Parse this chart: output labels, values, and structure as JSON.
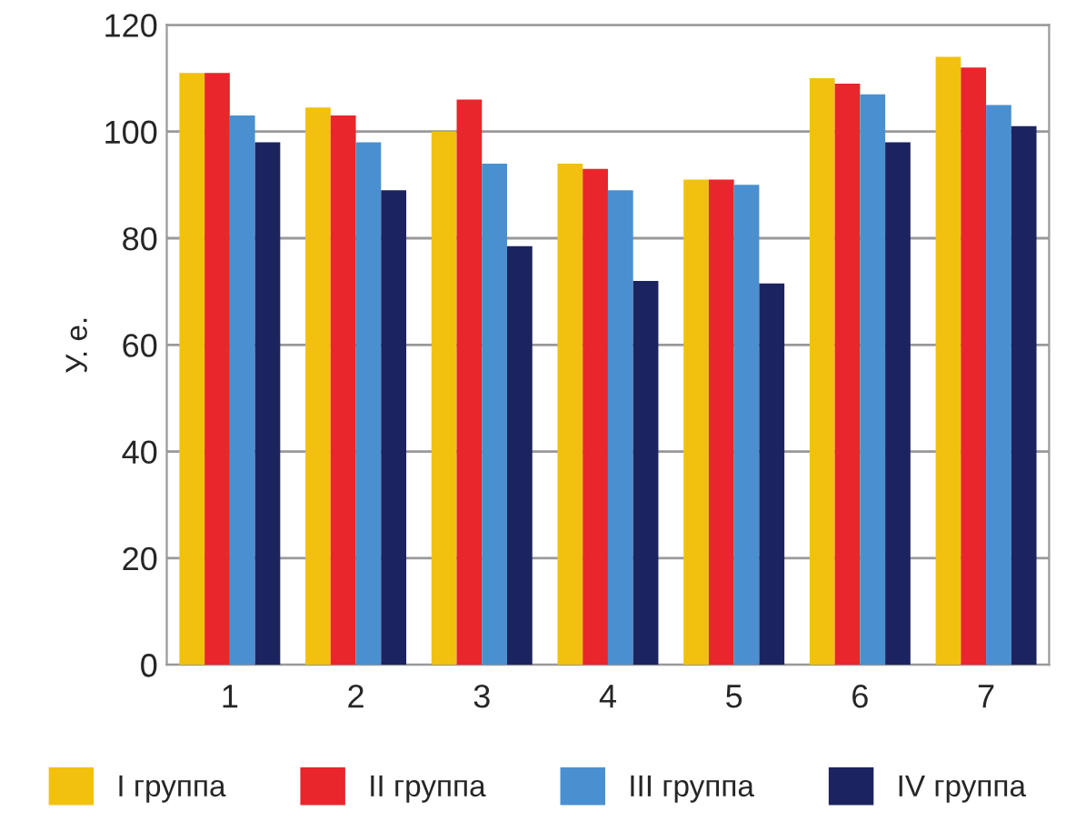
{
  "chart_data": {
    "type": "bar",
    "ylabel": "У. е.",
    "categories": [
      "1",
      "2",
      "3",
      "4",
      "5",
      "6",
      "7"
    ],
    "series": [
      {
        "name": "I группа",
        "color": "#f2c10f",
        "values": [
          111,
          104.5,
          100,
          94,
          91,
          110,
          114
        ]
      },
      {
        "name": "II группа",
        "color": "#e8262b",
        "values": [
          111,
          103,
          106,
          93,
          91,
          109,
          112
        ]
      },
      {
        "name": "III группа",
        "color": "#4a90d0",
        "values": [
          103,
          98,
          94,
          89,
          90,
          107,
          105
        ]
      },
      {
        "name": "IV группа",
        "color": "#1c2460",
        "values": [
          98,
          89,
          78.5,
          72,
          71.5,
          98,
          101
        ]
      }
    ],
    "ylim": [
      0,
      120
    ],
    "yticks": [
      0,
      20,
      40,
      60,
      80,
      100,
      120
    ],
    "grid": "y",
    "legend": "bottom"
  }
}
